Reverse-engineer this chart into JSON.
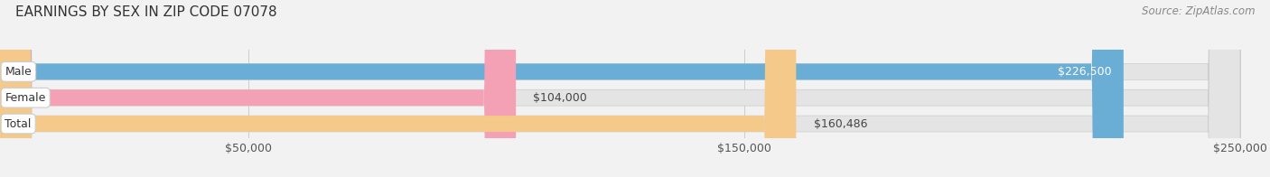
{
  "title": "EARNINGS BY SEX IN ZIP CODE 07078",
  "source": "Source: ZipAtlas.com",
  "categories": [
    "Male",
    "Female",
    "Total"
  ],
  "values": [
    226500,
    104000,
    160486
  ],
  "bar_colors": [
    "#6aaed6",
    "#f4a0b5",
    "#f5c98a"
  ],
  "value_labels": [
    "$226,500",
    "$104,000",
    "$160,486"
  ],
  "value_label_inside": [
    true,
    false,
    false
  ],
  "xmin": 0,
  "xmax": 250000,
  "xticks": [
    50000,
    150000,
    250000
  ],
  "xtick_labels": [
    "$50,000",
    "$150,000",
    "$250,000"
  ],
  "bg_color": "#f2f2f2",
  "bar_bg_color": "#e4e4e4",
  "title_fontsize": 11,
  "source_fontsize": 8.5,
  "label_fontsize": 9,
  "value_fontsize": 9,
  "tick_fontsize": 9
}
